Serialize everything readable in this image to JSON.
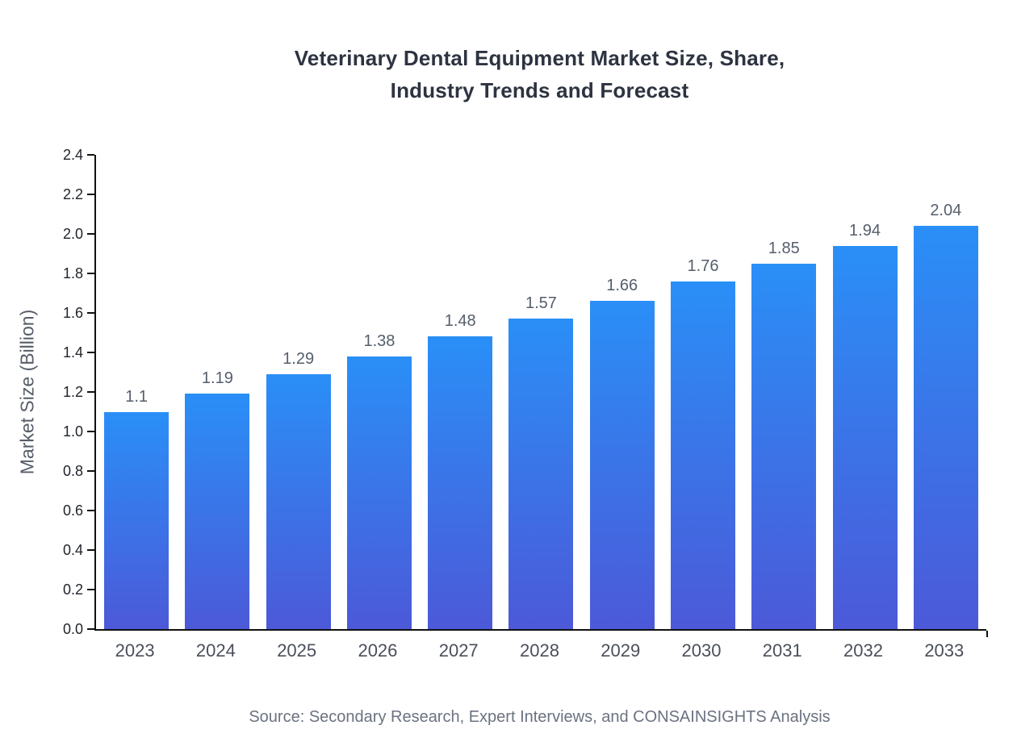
{
  "title": {
    "line1": "Veterinary Dental Equipment Market Size, Share,",
    "line2": "Industry Trends and Forecast"
  },
  "source": "Source: Secondary Research, Expert Interviews, and CONSAINSIGHTS Analysis",
  "chart_data": {
    "type": "bar",
    "title": "Veterinary Dental Equipment Market Size, Share, Industry Trends and Forecast",
    "xlabel": "",
    "ylabel": "Market Size (Billion)",
    "categories": [
      "2023",
      "2024",
      "2025",
      "2026",
      "2027",
      "2028",
      "2029",
      "2030",
      "2031",
      "2032",
      "2033"
    ],
    "values": [
      1.1,
      1.19,
      1.29,
      1.38,
      1.48,
      1.57,
      1.66,
      1.76,
      1.85,
      1.94,
      2.04
    ],
    "value_labels": [
      "1.1",
      "1.19",
      "1.29",
      "1.38",
      "1.48",
      "1.57",
      "1.66",
      "1.76",
      "1.85",
      "1.94",
      "2.04"
    ],
    "ylim": [
      0,
      2.4
    ],
    "y_ticks": [
      0.0,
      0.2,
      0.4,
      0.6,
      0.8,
      1.0,
      1.2,
      1.4,
      1.6,
      1.8,
      2.0,
      2.2,
      2.4
    ],
    "y_tick_labels": [
      "0.0",
      "0.2",
      "0.4",
      "0.6",
      "0.8",
      "1.0",
      "1.2",
      "1.4",
      "1.6",
      "1.8",
      "2.0",
      "2.2",
      "2.4"
    ],
    "grid": false,
    "legend": "none",
    "colors": {
      "bar_gradient_top": "#2a8ff7",
      "bar_gradient_bottom": "#4c59d8",
      "axis": "#111111",
      "tick_label": "#20252b",
      "value_label": "#555e6b",
      "x_label": "#4a4f5a",
      "title": "#2d3340",
      "ylabel": "#565d68",
      "source": "#6b7280"
    }
  }
}
